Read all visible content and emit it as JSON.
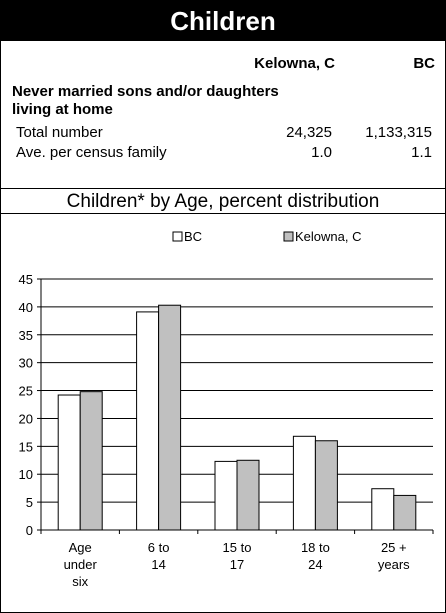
{
  "header": {
    "title": "Children"
  },
  "table": {
    "col1": "Kelowna, C",
    "col2": "BC",
    "section_title": "Never married sons and/or daughters living at home",
    "rows": [
      {
        "label": "Total number",
        "v1": "24,325",
        "v2": "1,133,315"
      },
      {
        "label": "Ave. per census family",
        "v1": "1.0",
        "v2": "1.1"
      }
    ]
  },
  "chart_data": {
    "type": "bar",
    "title": "Children* by Age, percent distribution",
    "categories": [
      [
        "Age",
        "under",
        "six"
      ],
      [
        "6 to",
        "14"
      ],
      [
        "15 to",
        "17"
      ],
      [
        "18 to",
        "24"
      ],
      [
        "25 +",
        "years"
      ]
    ],
    "series": [
      {
        "name": "BC",
        "values": [
          24.2,
          39.1,
          12.3,
          16.8,
          7.4
        ],
        "color": "#ffffff"
      },
      {
        "name": "Kelowna, C",
        "values": [
          24.8,
          40.3,
          12.5,
          16.0,
          6.2
        ],
        "color": "#c0c0c0"
      }
    ],
    "ylim": [
      0,
      45
    ],
    "yticks": [
      0,
      5,
      10,
      15,
      20,
      25,
      30,
      35,
      40,
      45
    ],
    "grid": true,
    "legend": "top-center"
  }
}
